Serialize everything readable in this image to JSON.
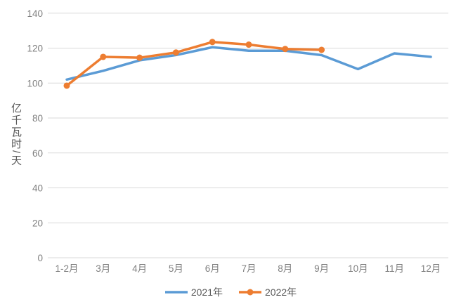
{
  "chart_data": {
    "type": "line",
    "title": "",
    "xlabel": "",
    "ylabel": "亿千瓦时/天",
    "categories": [
      "1-2月",
      "3月",
      "4月",
      "5月",
      "6月",
      "7月",
      "8月",
      "9月",
      "10月",
      "11月",
      "12月"
    ],
    "series": [
      {
        "name": "2021年",
        "color": "#5B9BD5",
        "marker": false,
        "values": [
          102,
          107,
          113,
          116,
          120.5,
          118.5,
          118.5,
          116,
          108,
          117,
          115
        ]
      },
      {
        "name": "2022年",
        "color": "#ED7D31",
        "marker": true,
        "values": [
          98.5,
          115,
          114.5,
          117.5,
          123.5,
          122,
          119.5,
          119
        ]
      }
    ],
    "ylim": [
      0,
      140
    ],
    "y_ticks": [
      0,
      20,
      40,
      60,
      80,
      100,
      120,
      140
    ],
    "grid": "horizontal",
    "legend_position": "bottom",
    "gridline_color": "#D9D9D9",
    "tick_label_color": "#808080",
    "axis_title_color": "#595959",
    "background_color": "#FFFFFF"
  }
}
